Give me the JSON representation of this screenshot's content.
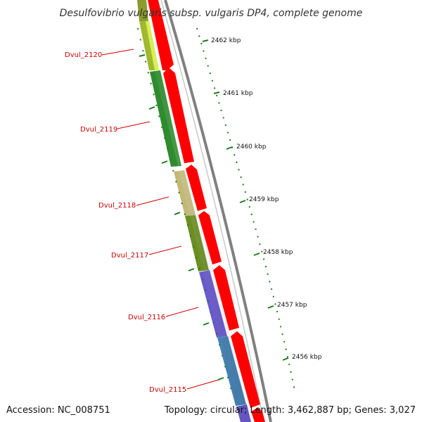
{
  "title": "Desulfovibrio vulgaris subsp. vulgaris DP4, complete genome",
  "footer": {
    "accession": "Accession: NC_008751",
    "summary": "Topology: circular; Length: 3,462,887 bp; Genes: 3,027"
  },
  "scale": {
    "ticks": [
      "2462 kbp",
      "2461 kbp",
      "2460 kbp",
      "2459 kbp",
      "2458 kbp",
      "2457 kbp",
      "2456 kbp"
    ]
  },
  "genes": [
    {
      "label": "Dvul_2120",
      "color": "#a5c23a"
    },
    {
      "label": "Dvul_2119",
      "color": "#2e8b2e"
    },
    {
      "label": "Dvul_2118",
      "color": "#c2b978"
    },
    {
      "label": "Dvul_2117",
      "color": "#6b8e23"
    },
    {
      "label": "Dvul_2116",
      "color": "#6a5acd"
    },
    {
      "label": "Dvul_2115",
      "color": "#4682b4"
    }
  ],
  "colors": {
    "cds_strand": "#ff0000",
    "backbone": "#808080",
    "gene_label": "#cc0000",
    "tick": "#1f7a1f"
  }
}
